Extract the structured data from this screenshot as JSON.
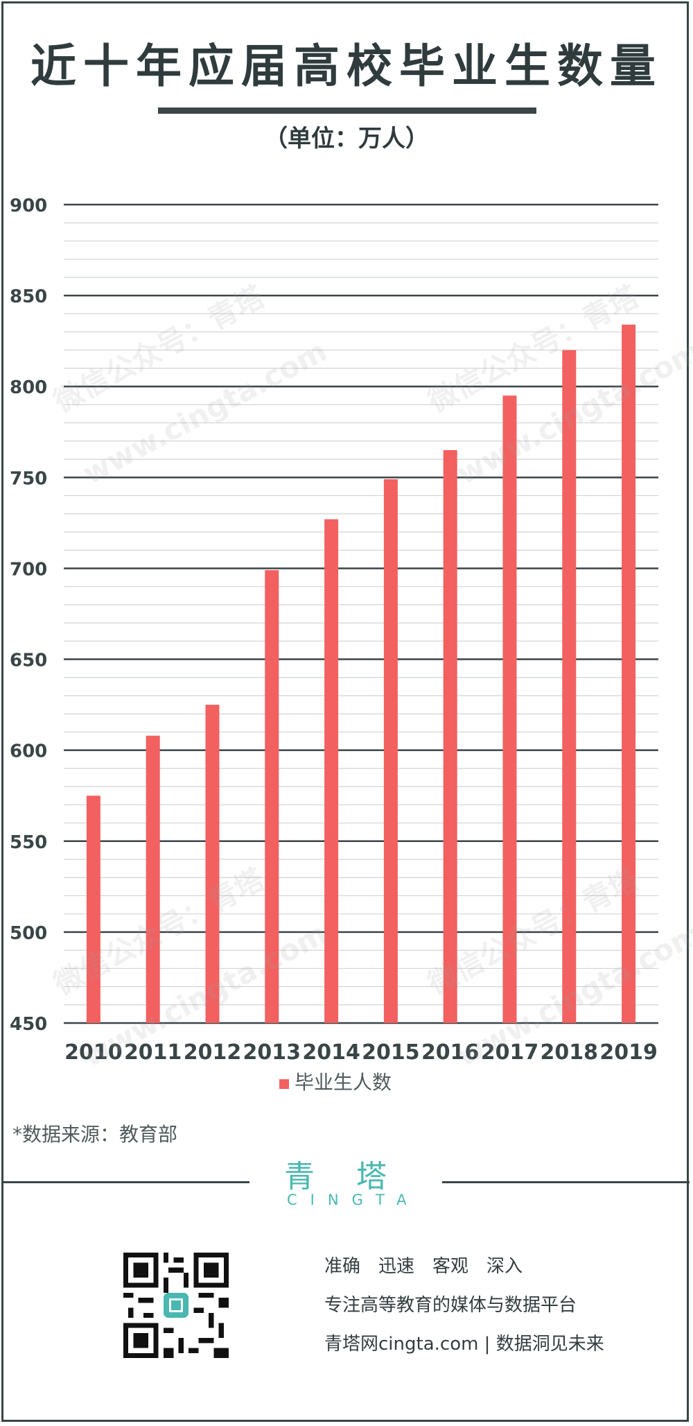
{
  "title": "近十年应届高校毕业生数量",
  "unit": "（单位：万人）",
  "source": "*数据来源：教育部",
  "brand": {
    "cn": "青塔",
    "en": "CINGTA"
  },
  "slogans": [
    "准确　迅速　客观　深入",
    "专注高等教育的媒体与数据平台",
    "青塔网cingta.com | 数据洞见未来"
  ],
  "watermark": {
    "line1": "微信公众号：青塔",
    "line2": "www.cingta.com"
  },
  "colors": {
    "bar": "#f26060",
    "text": "#333d40",
    "brand": "#49b8b0",
    "gridMajor": "#3a4547",
    "gridMinor": "#cfd3d4"
  },
  "chart_data": {
    "type": "bar",
    "categories": [
      "2010",
      "2011",
      "2012",
      "2013",
      "2014",
      "2015",
      "2016",
      "2017",
      "2018",
      "2019"
    ],
    "series": [
      {
        "name": "毕业生人数",
        "values": [
          575,
          608,
          625,
          699,
          727,
          749,
          765,
          795,
          820,
          834
        ]
      }
    ],
    "ylim": [
      450,
      900
    ],
    "yticks": [
      450,
      500,
      550,
      600,
      650,
      700,
      750,
      800,
      850,
      900
    ],
    "minor_step": 10,
    "legend_position": "bottom",
    "grid": true
  }
}
